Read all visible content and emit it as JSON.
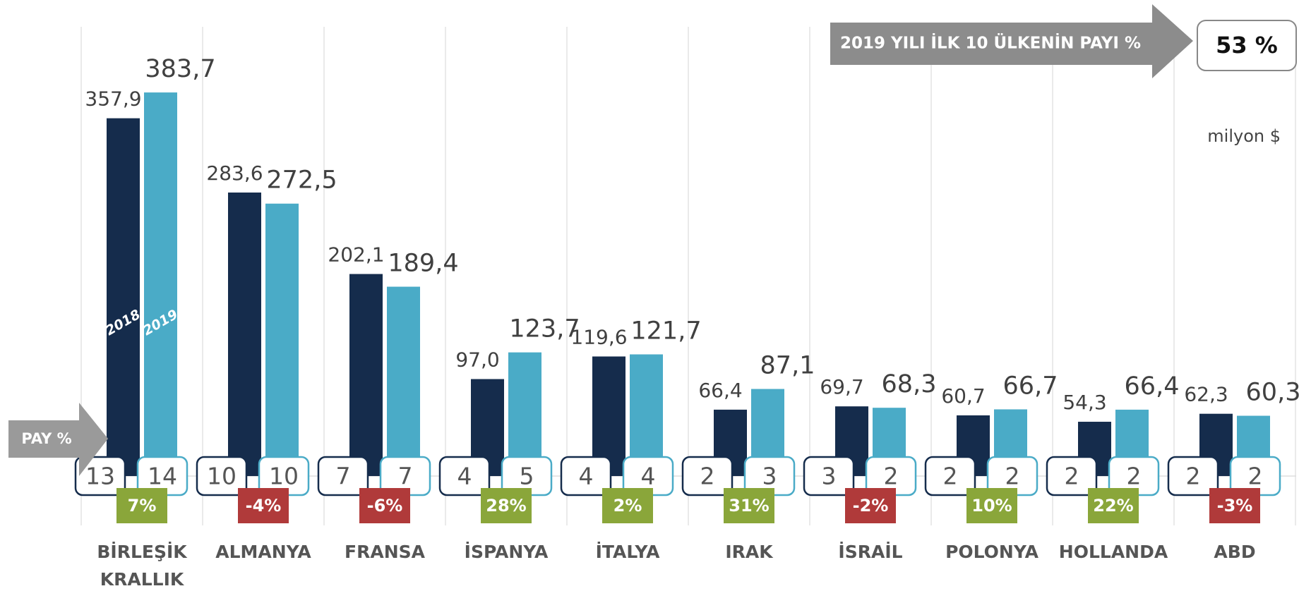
{
  "chart_data": {
    "type": "bar",
    "categories": [
      [
        "BİRLEŞİK",
        "KRALLIK"
      ],
      [
        "ALMANYA"
      ],
      [
        "FRANSA"
      ],
      [
        "İSPANYA"
      ],
      [
        "İTALYA"
      ],
      [
        "IRAK"
      ],
      [
        "İSRAİL"
      ],
      [
        "POLONYA"
      ],
      [
        "HOLLANDA"
      ],
      [
        "ABD"
      ]
    ],
    "series": [
      {
        "name": "2018",
        "color": "#152c4c",
        "values": [
          357.9,
          283.6,
          202.1,
          97.0,
          119.6,
          66.4,
          69.7,
          60.7,
          54.3,
          62.3
        ],
        "value_labels": [
          "357,9",
          "283,6",
          "202,1",
          "97,0",
          "119,6",
          "66,4",
          "69,7",
          "60,7",
          "54,3",
          "62,3"
        ],
        "share": [
          13,
          10,
          7,
          4,
          4,
          2,
          3,
          2,
          2,
          2
        ]
      },
      {
        "name": "2019",
        "color": "#4aabc7",
        "values": [
          383.7,
          272.5,
          189.4,
          123.7,
          121.7,
          87.1,
          68.3,
          66.7,
          66.4,
          60.3
        ],
        "value_labels": [
          "383,7",
          "272,5",
          "189,4",
          "123,7",
          "121,7",
          "87,1",
          "68,3",
          "66,7",
          "66,4",
          "60,3"
        ],
        "share": [
          14,
          10,
          7,
          5,
          4,
          3,
          2,
          2,
          2,
          2
        ]
      }
    ],
    "change": {
      "values": [
        7,
        -4,
        -6,
        28,
        2,
        31,
        -2,
        10,
        22,
        -3
      ],
      "value_labels": [
        "7%",
        "-4%",
        "-6%",
        "28%",
        "2%",
        "31%",
        "-2%",
        "10%",
        "22%",
        "-3%"
      ],
      "up_color": "#8aa63a",
      "down_color": "#b03a3a"
    },
    "ylim": [
      0,
      400
    ],
    "unit": "milyon $",
    "share_label": "PAY %",
    "top10_title": "2019 YILI İLK 10 ÜLKENİN PAYI %",
    "top10_share": {
      "value": 53,
      "label": "53 %"
    }
  }
}
